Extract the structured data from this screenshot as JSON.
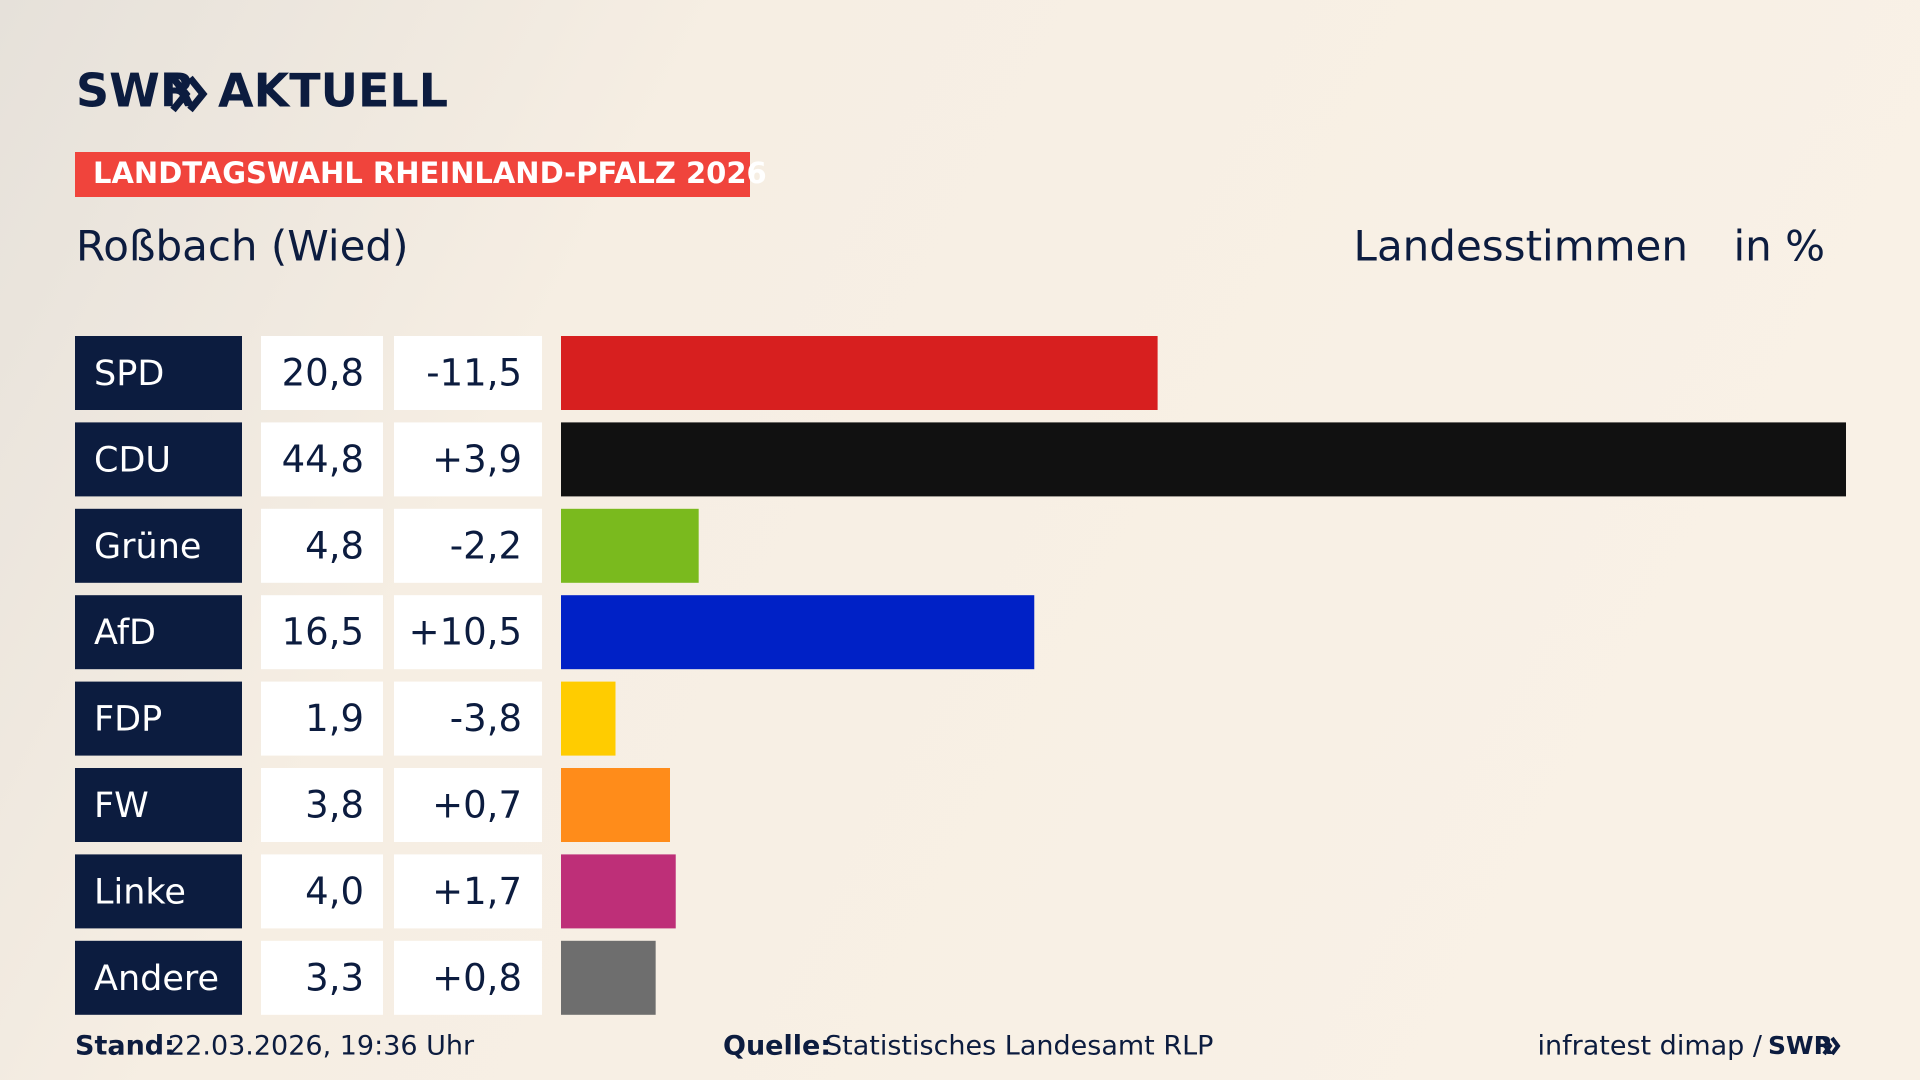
{
  "chart_data": {
    "type": "hbar",
    "brand": "SWR",
    "brand_sub": "AKTUELL",
    "label": "LANDTAGSWAHL RHEINLAND-PFALZ 2026",
    "title": "Roßbach (Wied)",
    "measure": "Landesstimmen",
    "unit": "in %",
    "categories": [
      "SPD",
      "CDU",
      "Grüne",
      "AfD",
      "FDP",
      "FW",
      "Linke",
      "Andere"
    ],
    "values": [
      20.8,
      44.8,
      4.8,
      16.5,
      1.9,
      3.8,
      4.0,
      3.3
    ],
    "value_labels": [
      "20,8",
      "44,8",
      "4,8",
      "16,5",
      "1,9",
      "3,8",
      "4,0",
      "3,3"
    ],
    "changes": [
      -11.5,
      3.9,
      -2.2,
      10.5,
      -3.8,
      0.7,
      1.7,
      0.8
    ],
    "change_labels": [
      "-11,5",
      "+3,9",
      "-2,2",
      "+10,5",
      "-3,8",
      "+0,7",
      "+1,7",
      "+0,8"
    ],
    "colors": [
      "#d71f1f",
      "#111111",
      "#7aba1e",
      "#0021c6",
      "#ffcc00",
      "#ff8c1a",
      "#be2f78",
      "#6e6e6e"
    ],
    "xlim": [
      0,
      44.8
    ],
    "footer": {
      "stand_label": "Stand:",
      "stand": "22.03.2026, 19:36 Uhr",
      "source_label": "Quelle:",
      "source": "Statistisches Landesamt RLP",
      "credit": "infratest dimap /",
      "credit_brand": "SWR"
    }
  }
}
